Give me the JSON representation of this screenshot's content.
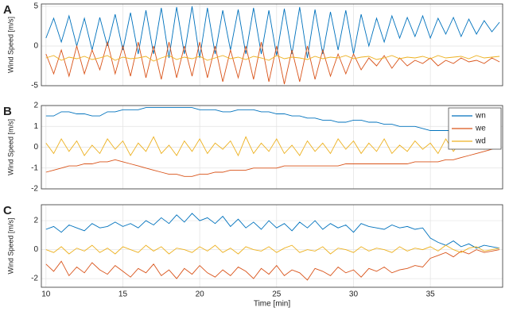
{
  "chart_data": [
    {
      "type": "line",
      "label": "A",
      "ylabel": "Wind Speed [m/s]",
      "xlim": [
        9.7,
        39.7
      ],
      "ylim": [
        -5,
        5.3
      ],
      "yticks": [
        -5,
        0,
        5
      ],
      "grid": true,
      "x": [
        10,
        10.5,
        11,
        11.5,
        12,
        12.5,
        13,
        13.5,
        14,
        14.5,
        15,
        15.5,
        16,
        16.5,
        17,
        17.5,
        18,
        18.5,
        19,
        19.5,
        20,
        20.5,
        21,
        21.5,
        22,
        22.5,
        23,
        23.5,
        24,
        24.5,
        25,
        25.5,
        26,
        26.5,
        27,
        27.5,
        28,
        28.5,
        29,
        29.5,
        30,
        30.5,
        31,
        31.5,
        32,
        32.5,
        33,
        33.5,
        34,
        34.5,
        35,
        35.5,
        36,
        36.5,
        37,
        37.5,
        38,
        38.5,
        39,
        39.5
      ],
      "series": [
        {
          "color": "#0072BD",
          "values": [
            1,
            3.5,
            0.5,
            3.8,
            0,
            3.5,
            -0.5,
            3.6,
            0,
            4,
            -0.5,
            4.2,
            -1,
            4.5,
            -1,
            4.8,
            -1.5,
            4.9,
            -1,
            5,
            -1.5,
            4.8,
            -1,
            4.5,
            -0.5,
            4.6,
            -1,
            4.8,
            -1,
            4.5,
            -1.2,
            4.7,
            -1,
            4.9,
            -1.5,
            4.6,
            -1,
            4.3,
            -0.5,
            4.5,
            -1,
            4,
            0,
            3.5,
            0.5,
            3.8,
            1,
            3.6,
            1.2,
            3.8,
            1,
            3.5,
            1.5,
            3.6,
            1.2,
            3.4,
            1.5,
            3.2,
            1.8,
            3
          ]
        },
        {
          "color": "#D95319",
          "values": [
            -1,
            -3.5,
            -0.5,
            -3.8,
            0,
            -3.5,
            -0.5,
            -3,
            0.5,
            -3.5,
            0,
            -3.8,
            0.5,
            -4,
            0,
            -4.2,
            0.5,
            -4,
            0,
            -3.8,
            0.5,
            -4,
            0,
            -4.5,
            -0.5,
            -4,
            0,
            -4.2,
            0.5,
            -4.5,
            0,
            -4.8,
            -0.5,
            -4.5,
            0,
            -4.2,
            -0.5,
            -3.8,
            -1,
            -3.5,
            -1,
            -3,
            -1.5,
            -2.5,
            -1.2,
            -2.8,
            -1.5,
            -2.5,
            -1.8,
            -2.2,
            -1.5,
            -2.5,
            -1.8,
            -2.2,
            -1.5,
            -2,
            -1.8,
            -2.2,
            -1.5,
            -2
          ]
        },
        {
          "color": "#EDB120",
          "values": [
            -1.5,
            -1.2,
            -1.8,
            -1.4,
            -1.6,
            -1.3,
            -1.7,
            -1.5,
            -1.2,
            -1.8,
            -1.4,
            -1.6,
            -1.5,
            -1.3,
            -1.9,
            -1.5,
            -1.2,
            -1.7,
            -1.4,
            -1.6,
            -1.3,
            -1.8,
            -1.5,
            -1.2,
            -1.6,
            -1.4,
            -1.7,
            -1.3,
            -1.5,
            -1.8,
            -1.2,
            -1.6,
            -1.4,
            -1.5,
            -1.7,
            -1.3,
            -1.6,
            -1.4,
            -1.5,
            -1.2,
            -1.6,
            -1.4,
            -1.3,
            -1.7,
            -1.5,
            -1.2,
            -1.6,
            -1.4,
            -1.5,
            -1.3,
            -1.6,
            -1.2,
            -1.5,
            -1.4,
            -1.3,
            -1.6,
            -1.2,
            -1.5,
            -1.4,
            -1.3
          ]
        }
      ]
    },
    {
      "type": "line",
      "label": "B",
      "ylabel": "Wind Speed [m/s]",
      "xlim": [
        9.7,
        39.7
      ],
      "ylim": [
        -2,
        2
      ],
      "yticks": [
        -2,
        -1,
        0,
        1,
        2
      ],
      "grid": true,
      "legend": "upper right",
      "x": [
        10,
        10.5,
        11,
        11.5,
        12,
        12.5,
        13,
        13.5,
        14,
        14.5,
        15,
        15.5,
        16,
        16.5,
        17,
        17.5,
        18,
        18.5,
        19,
        19.5,
        20,
        20.5,
        21,
        21.5,
        22,
        22.5,
        23,
        23.5,
        24,
        24.5,
        25,
        25.5,
        26,
        26.5,
        27,
        27.5,
        28,
        28.5,
        29,
        29.5,
        30,
        30.5,
        31,
        31.5,
        32,
        32.5,
        33,
        33.5,
        34,
        34.5,
        35,
        35.5,
        36,
        36.5,
        37,
        37.5,
        38,
        38.5,
        39,
        39.5
      ],
      "series": [
        {
          "name": "wn",
          "color": "#0072BD",
          "values": [
            1.5,
            1.5,
            1.7,
            1.7,
            1.6,
            1.6,
            1.5,
            1.5,
            1.7,
            1.7,
            1.8,
            1.8,
            1.8,
            1.9,
            1.9,
            1.9,
            1.9,
            1.9,
            1.9,
            1.9,
            1.8,
            1.8,
            1.8,
            1.7,
            1.7,
            1.8,
            1.8,
            1.8,
            1.7,
            1.7,
            1.6,
            1.6,
            1.5,
            1.5,
            1.4,
            1.4,
            1.3,
            1.3,
            1.2,
            1.2,
            1.3,
            1.3,
            1.2,
            1.2,
            1.1,
            1.1,
            1.0,
            1.0,
            1.0,
            0.9,
            0.8,
            0.8,
            0.8,
            0.8,
            0.7,
            0.6,
            0.5,
            0.4,
            0.3,
            0.3
          ]
        },
        {
          "name": "we",
          "color": "#D95319",
          "values": [
            -1.2,
            -1.1,
            -1.0,
            -0.9,
            -0.9,
            -0.8,
            -0.8,
            -0.7,
            -0.7,
            -0.6,
            -0.7,
            -0.8,
            -0.9,
            -1.0,
            -1.1,
            -1.2,
            -1.3,
            -1.3,
            -1.4,
            -1.4,
            -1.3,
            -1.3,
            -1.2,
            -1.2,
            -1.1,
            -1.1,
            -1.1,
            -1.0,
            -1.0,
            -1.0,
            -1.0,
            -0.9,
            -0.9,
            -0.9,
            -0.9,
            -0.9,
            -0.9,
            -0.9,
            -0.9,
            -0.8,
            -0.8,
            -0.8,
            -0.8,
            -0.8,
            -0.8,
            -0.8,
            -0.8,
            -0.8,
            -0.7,
            -0.7,
            -0.7,
            -0.7,
            -0.6,
            -0.6,
            -0.5,
            -0.4,
            -0.3,
            -0.2,
            -0.1,
            0
          ]
        },
        {
          "name": "wd",
          "color": "#EDB120",
          "values": [
            0.2,
            -0.3,
            0.4,
            -0.2,
            0.3,
            -0.4,
            0.1,
            -0.3,
            0.4,
            -0.1,
            0.3,
            -0.4,
            0.2,
            -0.2,
            0.5,
            -0.3,
            0.1,
            -0.4,
            0.3,
            -0.2,
            0.4,
            -0.3,
            0.2,
            -0.1,
            0.3,
            -0.4,
            0.5,
            -0.3,
            0.2,
            -0.2,
            0.4,
            -0.3,
            0.1,
            -0.4,
            0.3,
            -0.2,
            0.2,
            -0.3,
            0.4,
            -0.1,
            0.3,
            -0.3,
            0.2,
            -0.2,
            0.4,
            -0.3,
            0.1,
            -0.2,
            0.3,
            -0.1,
            0.2,
            -0.3,
            0.4,
            -0.2,
            0.3,
            0,
            0.4,
            -0.1,
            0.2,
            0.1
          ]
        }
      ]
    },
    {
      "type": "line",
      "label": "C",
      "ylabel": "Wind Speed [m/s]",
      "xlabel": "Time [min]",
      "xlim": [
        9.7,
        39.7
      ],
      "xticks": [
        10,
        15,
        20,
        25,
        30,
        35
      ],
      "ylim": [
        -2.6,
        3.1
      ],
      "yticks": [
        -2,
        0,
        2
      ],
      "grid": true,
      "x": [
        10,
        10.5,
        11,
        11.5,
        12,
        12.5,
        13,
        13.5,
        14,
        14.5,
        15,
        15.5,
        16,
        16.5,
        17,
        17.5,
        18,
        18.5,
        19,
        19.5,
        20,
        20.5,
        21,
        21.5,
        22,
        22.5,
        23,
        23.5,
        24,
        24.5,
        25,
        25.5,
        26,
        26.5,
        27,
        27.5,
        28,
        28.5,
        29,
        29.5,
        30,
        30.5,
        31,
        31.5,
        32,
        32.5,
        33,
        33.5,
        34,
        34.5,
        35,
        35.5,
        36,
        36.5,
        37,
        37.5,
        38,
        38.5,
        39,
        39.5
      ],
      "series": [
        {
          "color": "#0072BD",
          "values": [
            1.4,
            1.6,
            1.2,
            1.7,
            1.5,
            1.3,
            1.8,
            1.5,
            1.6,
            1.9,
            1.6,
            1.8,
            1.5,
            2.0,
            1.7,
            2.2,
            1.8,
            2.4,
            1.9,
            2.5,
            2.0,
            2.2,
            1.8,
            2.3,
            1.6,
            2.1,
            1.5,
            1.9,
            1.4,
            2.0,
            1.5,
            1.8,
            1.3,
            1.9,
            1.5,
            2.0,
            1.4,
            1.8,
            1.5,
            1.7,
            1.2,
            1.8,
            1.6,
            1.5,
            1.4,
            1.7,
            1.5,
            1.6,
            1.4,
            1.5,
            0.8,
            0.5,
            0.3,
            0.6,
            0.2,
            0.4,
            0.1,
            0.3,
            0.2,
            0.1
          ]
        },
        {
          "color": "#D95319",
          "values": [
            -1.0,
            -1.5,
            -0.8,
            -1.8,
            -1.2,
            -1.6,
            -0.9,
            -1.4,
            -1.7,
            -1.1,
            -1.5,
            -1.9,
            -1.3,
            -1.6,
            -1.0,
            -1.8,
            -1.4,
            -2.0,
            -1.3,
            -1.7,
            -1.1,
            -1.6,
            -1.9,
            -1.4,
            -1.8,
            -1.2,
            -1.5,
            -2.0,
            -1.3,
            -1.7,
            -1.1,
            -1.8,
            -1.4,
            -1.6,
            -2.1,
            -1.3,
            -1.5,
            -1.8,
            -1.2,
            -1.6,
            -1.4,
            -1.9,
            -1.3,
            -1.5,
            -1.2,
            -1.6,
            -1.4,
            -1.3,
            -1.1,
            -1.2,
            -0.6,
            -0.4,
            -0.2,
            -0.5,
            -0.1,
            -0.3,
            0,
            -0.2,
            -0.1,
            0
          ]
        },
        {
          "color": "#EDB120",
          "values": [
            0,
            -0.2,
            0.2,
            -0.3,
            0.1,
            -0.1,
            0.3,
            -0.2,
            0.1,
            -0.3,
            0.2,
            0,
            -0.2,
            0.3,
            -0.1,
            0.2,
            -0.3,
            0.1,
            0,
            -0.2,
            0.2,
            -0.1,
            0.3,
            -0.2,
            0.1,
            -0.3,
            0.2,
            0,
            -0.1,
            0.2,
            -0.2,
            0.1,
            0.3,
            -0.2,
            0,
            -0.1,
            0.2,
            -0.3,
            0.1,
            0,
            -0.2,
            0.2,
            -0.1,
            0.1,
            0,
            -0.2,
            0.2,
            -0.1,
            0.1,
            0,
            0.2,
            -0.1,
            0.3,
            0,
            -0.2,
            0.1,
            0.2,
            -0.1,
            0,
            0.1
          ]
        }
      ]
    }
  ]
}
